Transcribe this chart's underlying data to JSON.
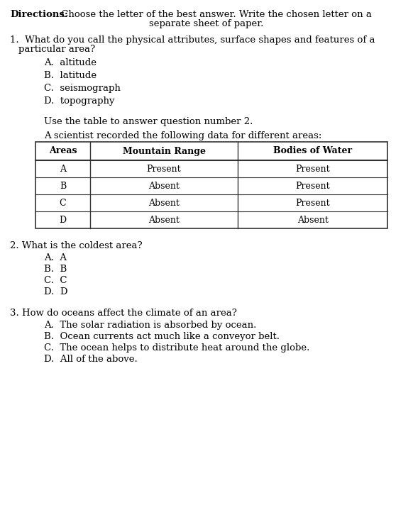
{
  "background_color": "#ffffff",
  "text_color": "#000000",
  "table_border_color": "#333333",
  "font_size": 9.5,
  "font_size_table": 9.0,
  "directions_bold": "Directions:",
  "directions_rest1": " Choose the letter of the best answer. Write the chosen letter on a",
  "directions_rest2": "separate sheet of paper.",
  "q1_line1": "1.  What do you call the physical attributes, surface shapes and features of a",
  "q1_line2": "    particular area?",
  "q1_options": [
    "A.  altitude",
    "B.  latitude",
    "C.  seismograph",
    "D.  topography"
  ],
  "table_intro1": "Use the table to answer question number 2.",
  "table_intro2": "A scientist recorded the following data for different areas:",
  "table_headers": [
    "Areas",
    "Mountain Range",
    "Bodies of Water"
  ],
  "table_rows": [
    [
      "A",
      "Present",
      "Present"
    ],
    [
      "B",
      "Absent",
      "Present"
    ],
    [
      "C",
      "Absent",
      "Present"
    ],
    [
      "D",
      "Absent",
      "Absent"
    ]
  ],
  "q2_line": "2. What is the coldest area?",
  "q2_options": [
    "A.  A",
    "B.  B",
    "C.  C",
    "D.  D"
  ],
  "q3_line": "3. How do oceans affect the climate of an area?",
  "q3_options": [
    "A.  The solar radiation is absorbed by ocean.",
    "B.  Ocean currents act much like a conveyor belt.",
    "C.  The ocean helps to distribute heat around the globe.",
    "D.  All of the above."
  ]
}
